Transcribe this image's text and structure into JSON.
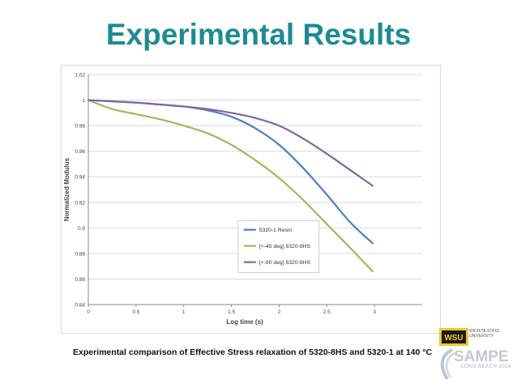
{
  "slide": {
    "title": "Experimental Results",
    "caption": "Experimental comparison of Effective Stress relaxation of 5320-8HS and 5320-1 at 140 °C"
  },
  "logos": {
    "wsu_mark": "WSU",
    "wsu_name": "WICHITA STATE UNIVERSITY",
    "sampe_word": "SAMPE",
    "sampe_sub": "LONG BEACH 2016"
  },
  "chart_data": {
    "type": "line",
    "title": "",
    "xlabel": "Log time (s)",
    "ylabel": "Normalized Modulus",
    "xlim": [
      0,
      3.5
    ],
    "ylim": [
      0.84,
      1.02
    ],
    "xticks": [
      0,
      0.5,
      1,
      1.5,
      2,
      2.5,
      3
    ],
    "xtick_labels": [
      "0",
      "0.5",
      "1",
      "1.5",
      "2",
      "2.5",
      "3"
    ],
    "yticks": [
      0.84,
      0.86,
      0.88,
      0.9,
      0.92,
      0.94,
      0.96,
      0.98,
      1,
      1.02
    ],
    "ytick_labels": [
      "0.84",
      "0.86",
      "0.88",
      "0.9",
      "0.92",
      "0.94",
      "0.96",
      "0.98",
      "1",
      "1.02"
    ],
    "grid": "horizontal",
    "legend_position": "bottom-right",
    "series": [
      {
        "name": "5320-1 Resin",
        "color": "#4a7fbd",
        "x": [
          0,
          0.25,
          0.5,
          0.75,
          1.0,
          1.25,
          1.5,
          1.75,
          2.0,
          2.25,
          2.5,
          2.75,
          2.98
        ],
        "y": [
          1.0,
          0.999,
          0.998,
          0.9965,
          0.995,
          0.992,
          0.987,
          0.978,
          0.965,
          0.947,
          0.926,
          0.904,
          0.888
        ]
      },
      {
        "name": "[+-45 deg] 5320-8HS",
        "color": "#9bbb59",
        "x": [
          0,
          0.25,
          0.5,
          0.75,
          1.0,
          1.25,
          1.5,
          1.75,
          2.0,
          2.25,
          2.5,
          2.75,
          2.98
        ],
        "y": [
          1.0,
          0.993,
          0.989,
          0.985,
          0.98,
          0.974,
          0.965,
          0.953,
          0.939,
          0.922,
          0.903,
          0.884,
          0.866
        ]
      },
      {
        "name": "[+-90 deg] 5320-8HS",
        "color": "#8064a2",
        "x": [
          0,
          0.25,
          0.5,
          0.75,
          1.0,
          1.25,
          1.5,
          1.75,
          2.0,
          2.25,
          2.5,
          2.75,
          2.98
        ],
        "y": [
          1.0,
          0.999,
          0.998,
          0.9965,
          0.995,
          0.993,
          0.99,
          0.986,
          0.98,
          0.97,
          0.958,
          0.945,
          0.933
        ]
      }
    ]
  }
}
